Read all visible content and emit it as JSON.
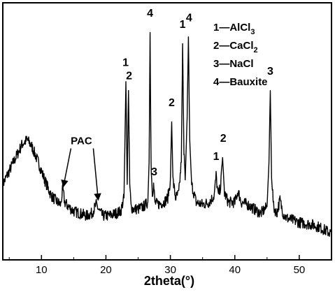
{
  "chart_data": {
    "type": "line",
    "xlabel": "2theta(°)",
    "ylabel": "",
    "xlim": [
      4,
      55
    ],
    "ylim": [
      0,
      100
    ],
    "xticks": [
      10,
      20,
      30,
      40,
      50
    ],
    "grid": false,
    "legend_position": "top-right",
    "legend": [
      {
        "prefix": "1—",
        "base": "AlCl",
        "sub": "3"
      },
      {
        "prefix": "2—",
        "base": "CaCl",
        "sub": "2"
      },
      {
        "prefix": "3—",
        "base": "NaCl",
        "sub": ""
      },
      {
        "prefix": "4—",
        "base": "Bauxite",
        "sub": ""
      }
    ],
    "series": [
      {
        "x": [
          4,
          5,
          6,
          7,
          7.8,
          8.5,
          9.5,
          10.5,
          11.5,
          12.5,
          13,
          13.3,
          13.6,
          14.2,
          15,
          16,
          17,
          17.8,
          18.5,
          19,
          19.5,
          20.5,
          21.5,
          22.3,
          22.8,
          23.1,
          23.3,
          23.5,
          23.7,
          23.9,
          24.2,
          25,
          25.8,
          26.5,
          26.7,
          26.85,
          27,
          27.2,
          27.4,
          27.6,
          28,
          29,
          29.6,
          30,
          30.2,
          30.4,
          30.8,
          31.3,
          31.7,
          31.9,
          32.1,
          32.3,
          32.6,
          32.8,
          33,
          33.3,
          34,
          35,
          36,
          36.8,
          37.1,
          37.4,
          37.8,
          38.1,
          38.4,
          39,
          40,
          40.5,
          41,
          42,
          43,
          44,
          45,
          45.3,
          45.5,
          45.7,
          46,
          46.5,
          47,
          47.5,
          48,
          50,
          52,
          53,
          55
        ],
        "y": [
          30,
          36,
          42,
          48,
          50,
          47,
          40,
          32,
          25,
          22,
          21,
          28,
          22,
          20,
          18,
          17,
          16,
          17,
          21,
          18,
          16,
          16,
          17,
          18,
          24,
          76,
          30,
          72,
          30,
          20,
          19,
          19,
          20,
          22,
          40,
          98,
          40,
          26,
          30,
          22,
          21,
          22,
          24,
          32,
          58,
          32,
          24,
          26,
          40,
          93,
          45,
          32,
          60,
          96,
          50,
          30,
          22,
          21,
          22,
          25,
          34,
          25,
          29,
          42,
          26,
          22,
          22,
          27,
          22,
          21,
          19,
          17,
          20,
          40,
          72,
          35,
          20,
          17,
          23,
          17,
          15,
          13,
          12,
          11,
          8
        ]
      }
    ],
    "peak_labels": [
      {
        "text": "1",
        "x": 23.05,
        "y": 83
      },
      {
        "text": "2",
        "x": 23.6,
        "y": 77
      },
      {
        "text": "4",
        "x": 26.85,
        "y": 105
      },
      {
        "text": "3",
        "x": 27.5,
        "y": 34
      },
      {
        "text": "2",
        "x": 30.2,
        "y": 65
      },
      {
        "text": "1",
        "x": 31.9,
        "y": 100
      },
      {
        "text": "4",
        "x": 32.9,
        "y": 103
      },
      {
        "text": "1",
        "x": 37.1,
        "y": 41
      },
      {
        "text": "2",
        "x": 38.2,
        "y": 49
      },
      {
        "text": "3",
        "x": 45.5,
        "y": 79
      }
    ],
    "annotation": {
      "text": "PAC",
      "x": 16.2,
      "y": 48,
      "arrows": [
        [
          13.4,
          29
        ],
        [
          18.8,
          23
        ]
      ]
    }
  }
}
